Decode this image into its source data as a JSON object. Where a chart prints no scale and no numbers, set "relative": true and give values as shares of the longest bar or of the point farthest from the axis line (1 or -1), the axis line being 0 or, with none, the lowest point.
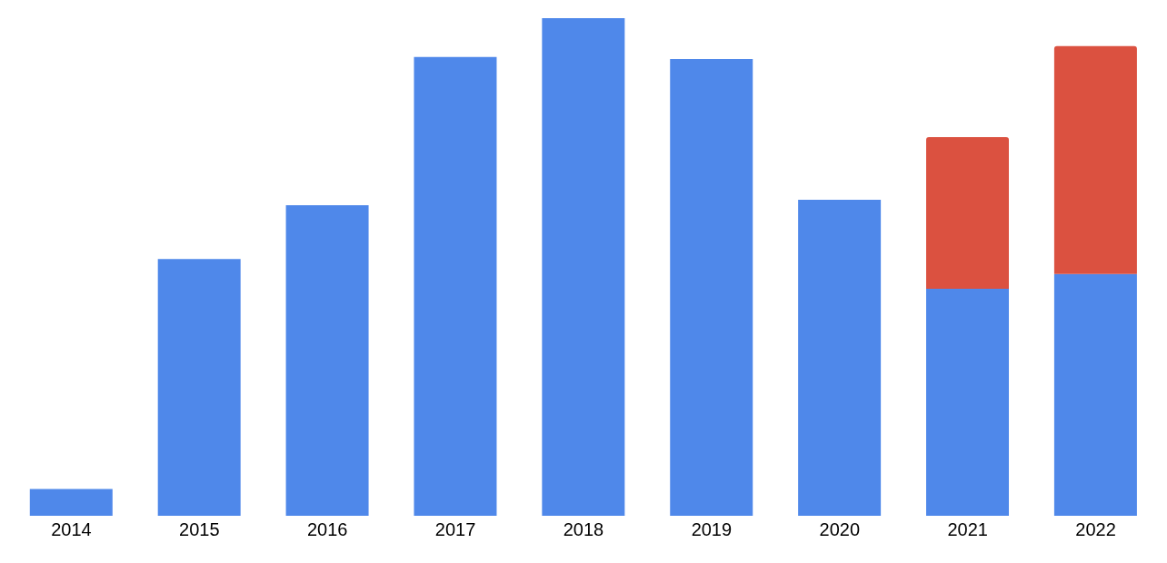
{
  "chart_data": {
    "type": "bar",
    "stacked": true,
    "relative": true,
    "categories": [
      "2014",
      "2015",
      "2016",
      "2017",
      "2018",
      "2019",
      "2020",
      "2021",
      "2022"
    ],
    "series": [
      {
        "color": "#4f88ea",
        "values": [
          0.054,
          0.516,
          0.624,
          0.922,
          1,
          0.918,
          0.635,
          0.456,
          0.486
        ]
      },
      {
        "color": "#db5140",
        "values": [
          null,
          null,
          null,
          null,
          null,
          null,
          null,
          0.305,
          0.458
        ]
      }
    ],
    "grid": false,
    "legend": false
  }
}
